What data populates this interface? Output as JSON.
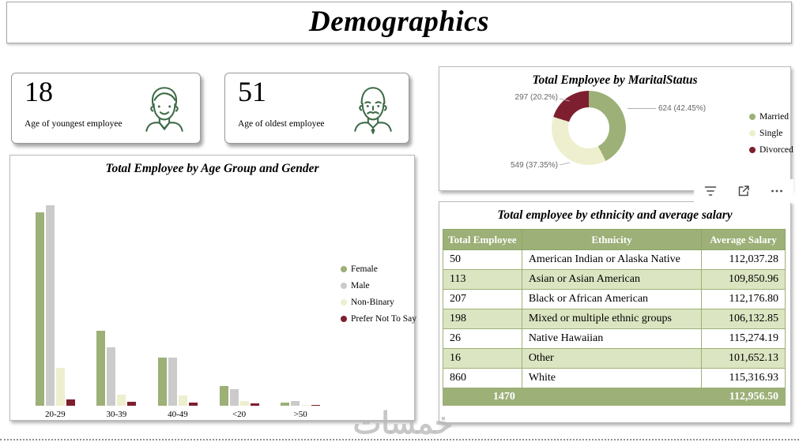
{
  "page": {
    "title": "Demographics",
    "watermark": "خمسات"
  },
  "kpi_cards": [
    {
      "value": "18",
      "label": "Age of youngest employee",
      "icon": "young-man-avatar-icon"
    },
    {
      "value": "51",
      "label": "Age of oldest employee",
      "icon": "older-man-avatar-icon"
    }
  ],
  "visual_toolbar": {
    "icons": [
      "filter-icon",
      "popout-icon",
      "more-options-icon"
    ]
  },
  "colors": {
    "green": "#9CB077",
    "gray": "#CBCBCB",
    "cream": "#EDEFCE",
    "maroon": "#7E1F30",
    "table_alt_row": "#DCE5C2"
  },
  "chart_data": [
    {
      "type": "bar",
      "title": "Total Employee by Age Group and Gender",
      "categories": [
        "20-29",
        "30-39",
        "40-49",
        "<20",
        ">50"
      ],
      "series": [
        {
          "name": "Female",
          "color": "#9CB077",
          "values": [
            380,
            147,
            94,
            39,
            6
          ]
        },
        {
          "name": "Male",
          "color": "#CBCBCB",
          "values": [
            393,
            114,
            94,
            32,
            9
          ]
        },
        {
          "name": "Non-Binary",
          "color": "#EDEFCE",
          "values": [
            74,
            22,
            20,
            9,
            2
          ]
        },
        {
          "name": "Prefer Not To Say",
          "color": "#7E1F30",
          "values": [
            12,
            8,
            6,
            5,
            2
          ]
        }
      ],
      "ylim": [
        0,
        420
      ],
      "legend_position": "right",
      "grid": false
    },
    {
      "type": "pie",
      "donut": true,
      "title": "Total Employee by MaritalStatus",
      "slices": [
        {
          "label": "Married",
          "value": 624,
          "pct": 42.45,
          "color": "#9CB077",
          "data_label": "624 (42.45%)"
        },
        {
          "label": "Single",
          "value": 549,
          "pct": 37.35,
          "color": "#EDEFCE",
          "data_label": "549 (37.35%)"
        },
        {
          "label": "Divorced",
          "value": 297,
          "pct": 20.2,
          "color": "#7E1F30",
          "data_label": "297 (20.2%)"
        }
      ],
      "legend_position": "right"
    },
    {
      "type": "table",
      "title": "Total employee by ethnicity and average salary",
      "columns": [
        "Total Employee",
        "Ethnicity",
        "Average Salary"
      ],
      "rows": [
        [
          "50",
          "American Indian or Alaska Native",
          "112,037.28"
        ],
        [
          "113",
          "Asian or Asian American",
          "109,850.96"
        ],
        [
          "207",
          "Black or African American",
          "112,176.80"
        ],
        [
          "198",
          "Mixed or multiple ethnic groups",
          "106,132.85"
        ],
        [
          "26",
          "Native Hawaiian",
          "115,274.19"
        ],
        [
          "16",
          "Other",
          "101,652.13"
        ],
        [
          "860",
          "White",
          "115,316.93"
        ]
      ],
      "total_row": [
        "1470",
        "",
        "112,956.50"
      ]
    }
  ]
}
